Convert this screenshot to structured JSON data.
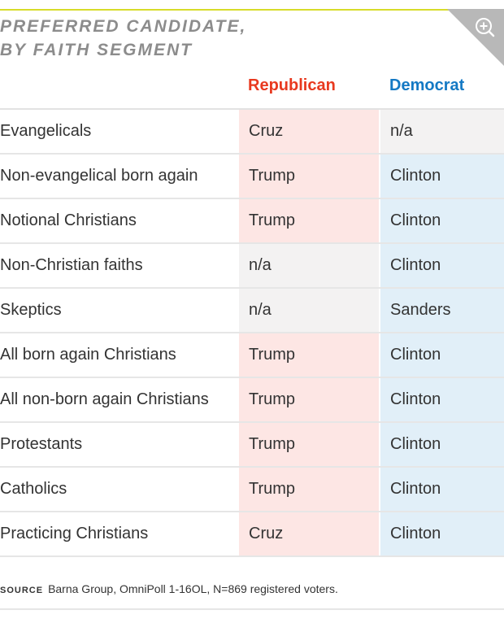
{
  "title_lines": [
    "PREFERRED CANDIDATE,",
    "BY FAITH SEGMENT"
  ],
  "columns": {
    "segment": "",
    "republican": "Republican",
    "democrat": "Democrat"
  },
  "colors": {
    "republican": "#e8391f",
    "democrat": "#1479c4",
    "rep_cell": "#fde6e4",
    "dem_cell": "#e1eff8",
    "na_cell": "#f3f2f2",
    "accent_rule": "#d7dc2a"
  },
  "rows": [
    {
      "segment": "Evangelicals",
      "republican": "Cruz",
      "democrat": "n/a"
    },
    {
      "segment": "Non-evangelical born again",
      "republican": "Trump",
      "democrat": "Clinton"
    },
    {
      "segment": "Notional Christians",
      "republican": "Trump",
      "democrat": "Clinton"
    },
    {
      "segment": "Non-Christian faiths",
      "republican": "n/a",
      "democrat": "Clinton"
    },
    {
      "segment": "Skeptics",
      "republican": "n/a",
      "democrat": "Sanders"
    },
    {
      "segment": "All born again Christians",
      "republican": "Trump",
      "democrat": "Clinton"
    },
    {
      "segment": "All non-born again Christians",
      "republican": "Trump",
      "democrat": "Clinton"
    },
    {
      "segment": "Protestants",
      "republican": "Trump",
      "democrat": "Clinton"
    },
    {
      "segment": "Catholics",
      "republican": "Trump",
      "democrat": "Clinton"
    },
    {
      "segment": "Practicing Christians",
      "republican": "Cruz",
      "democrat": "Clinton"
    }
  ],
  "source": {
    "label": "SOURCE",
    "text": "Barna Group, OmniPoll 1-16OL, N=869 registered voters."
  },
  "zoom_icon": "zoom-in-icon",
  "chart_data": {
    "type": "table",
    "title": "PREFERRED CANDIDATE, BY FAITH SEGMENT",
    "columns": [
      "",
      "Republican",
      "Democrat"
    ],
    "rows": [
      [
        "Evangelicals",
        "Cruz",
        "n/a"
      ],
      [
        "Non-evangelical born again",
        "Trump",
        "Clinton"
      ],
      [
        "Notional Christians",
        "Trump",
        "Clinton"
      ],
      [
        "Non-Christian faiths",
        "n/a",
        "Clinton"
      ],
      [
        "Skeptics",
        "n/a",
        "Sanders"
      ],
      [
        "All born again Christians",
        "Trump",
        "Clinton"
      ],
      [
        "All non-born again Christians",
        "Trump",
        "Clinton"
      ],
      [
        "Protestants",
        "Trump",
        "Clinton"
      ],
      [
        "Catholics",
        "Trump",
        "Clinton"
      ],
      [
        "Practicing Christians",
        "Cruz",
        "Clinton"
      ]
    ]
  }
}
